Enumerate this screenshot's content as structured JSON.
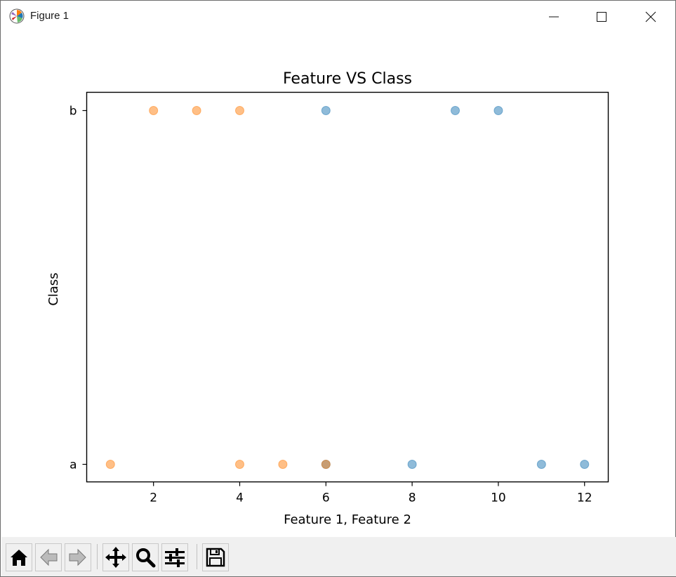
{
  "window": {
    "title": "Figure 1",
    "icons": {
      "app": "matplotlib-logo-icon",
      "minimize": "minimize-icon",
      "maximize": "maximize-icon",
      "close": "close-icon"
    }
  },
  "toolbar": {
    "buttons": [
      {
        "name": "home-button",
        "icon": "home-icon"
      },
      {
        "name": "back-button",
        "icon": "arrow-left-icon"
      },
      {
        "name": "forward-button",
        "icon": "arrow-right-icon"
      },
      {
        "name": "pan-button",
        "icon": "move-icon"
      },
      {
        "name": "zoom-button",
        "icon": "magnifier-icon"
      },
      {
        "name": "configure-subplots-button",
        "icon": "sliders-icon"
      },
      {
        "name": "save-button",
        "icon": "floppy-disk-icon"
      }
    ]
  },
  "colors": {
    "blue": "#1f77b4",
    "orange": "#ff7f0e"
  },
  "chart_data": {
    "type": "scatter",
    "title": "Feature VS Class",
    "xlabel": "Feature 1, Feature 2",
    "ylabel": "Class",
    "xlim": [
      0.45,
      12.55
    ],
    "xticks": [
      2,
      4,
      6,
      8,
      10,
      12
    ],
    "yticks": [
      "a",
      "b"
    ],
    "grid": false,
    "series": [
      {
        "color": "#1f77b4",
        "alpha": 0.5,
        "points": [
          {
            "x": 6,
            "y": "b"
          },
          {
            "x": 9,
            "y": "b"
          },
          {
            "x": 10,
            "y": "b"
          },
          {
            "x": 6,
            "y": "a"
          },
          {
            "x": 8,
            "y": "a"
          },
          {
            "x": 11,
            "y": "a"
          },
          {
            "x": 12,
            "y": "a"
          }
        ]
      },
      {
        "color": "#ff7f0e",
        "alpha": 0.5,
        "points": [
          {
            "x": 2,
            "y": "b"
          },
          {
            "x": 3,
            "y": "b"
          },
          {
            "x": 4,
            "y": "b"
          },
          {
            "x": 1,
            "y": "a"
          },
          {
            "x": 4,
            "y": "a"
          },
          {
            "x": 5,
            "y": "a"
          },
          {
            "x": 6,
            "y": "a"
          }
        ]
      }
    ]
  }
}
